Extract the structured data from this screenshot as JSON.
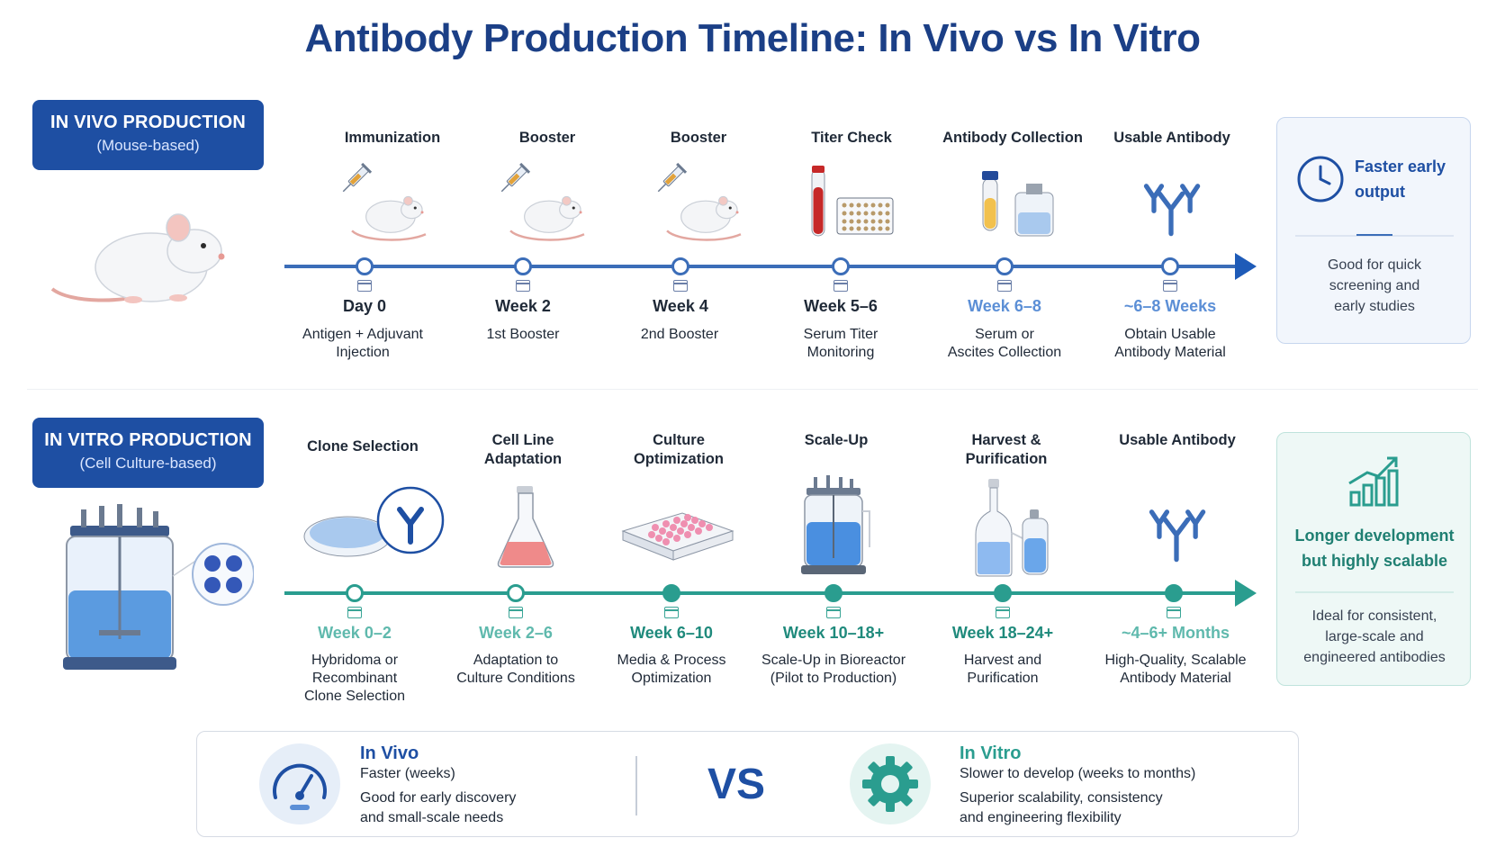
{
  "title": "Antibody Production Timeline: In Vivo vs In Vitro",
  "colors": {
    "vivo_accent": "#1e4fa3",
    "vitro_accent": "#2a9d8f"
  },
  "vivo": {
    "badge_main": "IN VIVO PRODUCTION",
    "badge_sub": "(Mouse-based)",
    "illustration": "mouse",
    "stages": [
      {
        "label": "Immunization",
        "icon": "mouse-injection-icon",
        "time": "Day 0",
        "desc1": "Antigen + Adjuvant",
        "desc2": "Injection"
      },
      {
        "label": "Booster",
        "icon": "mouse-injection-icon",
        "time": "Week 2",
        "desc1": "1st Booster",
        "desc2": ""
      },
      {
        "label": "Booster",
        "icon": "mouse-injection-icon",
        "time": "Week 4",
        "desc1": "2nd Booster",
        "desc2": ""
      },
      {
        "label": "Titer Check",
        "icon": "blood-tube-plate-icon",
        "time": "Week 5–6",
        "desc1": "Serum Titer",
        "desc2": "Monitoring"
      },
      {
        "label": "Antibody Collection",
        "icon": "collection-tube-icon",
        "time": "Week 6–8",
        "desc1": "Serum or",
        "desc2": "Ascites Collection"
      },
      {
        "label": "Usable Antibody",
        "icon": "antibody-icon",
        "time": "~6–8 Weeks",
        "desc1": "Obtain Usable",
        "desc2": "Antibody Material"
      }
    ],
    "card": {
      "title1": "Faster early",
      "title2": "output",
      "desc1": "Good for quick",
      "desc2": "screening and",
      "desc3": "early studies",
      "icon": "clock-icon"
    }
  },
  "vitro": {
    "badge_main": "IN VITRO PRODUCTION",
    "badge_sub": "(Cell Culture-based)",
    "illustration": "bioreactor",
    "stages": [
      {
        "label1": "Clone Selection",
        "label2": "",
        "icon": "petri-dish-antibody-icon",
        "time": "Week 0–2",
        "desc1": "Hybridoma or",
        "desc2": "Recombinant",
        "desc3": "Clone Selection"
      },
      {
        "label1": "Cell Line",
        "label2": "Adaptation",
        "icon": "flask-icon",
        "time": "Week 2–6",
        "desc1": "Adaptation to",
        "desc2": "Culture Conditions",
        "desc3": ""
      },
      {
        "label1": "Culture",
        "label2": "Optimization",
        "icon": "well-plate-icon",
        "time": "Week 6–10",
        "desc1": "Media & Process",
        "desc2": "Optimization",
        "desc3": ""
      },
      {
        "label1": "Scale-Up",
        "label2": "",
        "icon": "bioreactor-icon",
        "time": "Week 10–18+",
        "desc1": "Scale-Up in Bioreactor",
        "desc2": "(Pilot to Production)",
        "desc3": ""
      },
      {
        "label1": "Harvest &",
        "label2": "Purification",
        "icon": "harvest-bottles-icon",
        "time": "Week 18–24+",
        "desc1": "Harvest and",
        "desc2": "Purification",
        "desc3": ""
      },
      {
        "label1": "Usable Antibody",
        "label2": "",
        "icon": "antibody-icon",
        "time": "~4–6+ Months",
        "desc1": "High-Quality, Scalable",
        "desc2": "Antibody Material",
        "desc3": ""
      }
    ],
    "card": {
      "title1": "Longer development",
      "title2": "but highly scalable",
      "desc1": "Ideal for consistent,",
      "desc2": "large-scale and",
      "desc3": "engineered antibodies",
      "icon": "growth-chart-icon"
    }
  },
  "compare": {
    "vivo_title": "In Vivo",
    "vivo_line1": "Faster (weeks)",
    "vivo_line2": "Good for early discovery",
    "vivo_line3": "and small-scale needs",
    "vs": "VS",
    "vitro_title": "In Vitro",
    "vitro_line1": "Slower to develop (weeks to months)",
    "vitro_line2": "Superior scalability, consistency",
    "vitro_line3": "and engineering flexibility"
  }
}
